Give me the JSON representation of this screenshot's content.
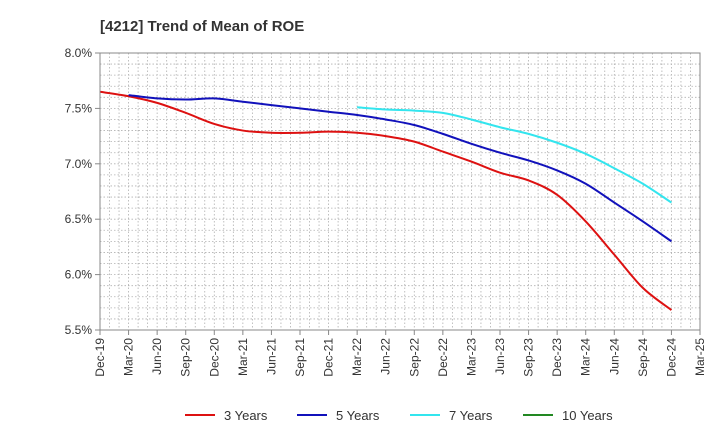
{
  "chart_data": {
    "type": "line",
    "title": "[4212]  Trend of Mean of ROE",
    "xlabel": "",
    "ylabel": "",
    "ylim": [
      5.5,
      8.0
    ],
    "yticks": [
      5.5,
      6.0,
      6.5,
      7.0,
      7.5,
      8.0
    ],
    "ytick_labels": [
      "5.5%",
      "6.0%",
      "6.5%",
      "7.0%",
      "7.5%",
      "8.0%"
    ],
    "categories": [
      "Dec-19",
      "Mar-20",
      "Jun-20",
      "Sep-20",
      "Dec-20",
      "Mar-21",
      "Jun-21",
      "Sep-21",
      "Dec-21",
      "Mar-22",
      "Jun-22",
      "Sep-22",
      "Dec-22",
      "Mar-23",
      "Jun-23",
      "Sep-23",
      "Dec-23",
      "Mar-24",
      "Jun-24",
      "Sep-24",
      "Dec-24",
      "Mar-25"
    ],
    "grid": true,
    "series": [
      {
        "name": "3 Years",
        "color": "#dd1111",
        "values": [
          7.65,
          7.61,
          7.55,
          7.46,
          7.36,
          7.3,
          7.28,
          7.28,
          7.29,
          7.28,
          7.25,
          7.2,
          7.11,
          7.02,
          6.92,
          6.85,
          6.72,
          6.48,
          6.18,
          5.88,
          5.68,
          null
        ]
      },
      {
        "name": "5 Years",
        "color": "#1111bb",
        "values": [
          null,
          7.62,
          7.59,
          7.58,
          7.59,
          7.56,
          7.53,
          7.5,
          7.47,
          7.44,
          7.4,
          7.35,
          7.27,
          7.18,
          7.1,
          7.03,
          6.94,
          6.82,
          6.65,
          6.48,
          6.3,
          null
        ]
      },
      {
        "name": "7 Years",
        "color": "#33e5ee",
        "values": [
          null,
          null,
          null,
          null,
          null,
          null,
          null,
          null,
          null,
          7.51,
          7.49,
          7.48,
          7.46,
          7.4,
          7.33,
          7.27,
          7.19,
          7.09,
          6.96,
          6.82,
          6.65,
          null
        ]
      },
      {
        "name": "10 Years",
        "color": "#228822",
        "values": [
          null,
          null,
          null,
          null,
          null,
          null,
          null,
          null,
          null,
          null,
          null,
          null,
          null,
          null,
          null,
          null,
          null,
          null,
          null,
          null,
          null,
          null
        ]
      }
    ]
  }
}
